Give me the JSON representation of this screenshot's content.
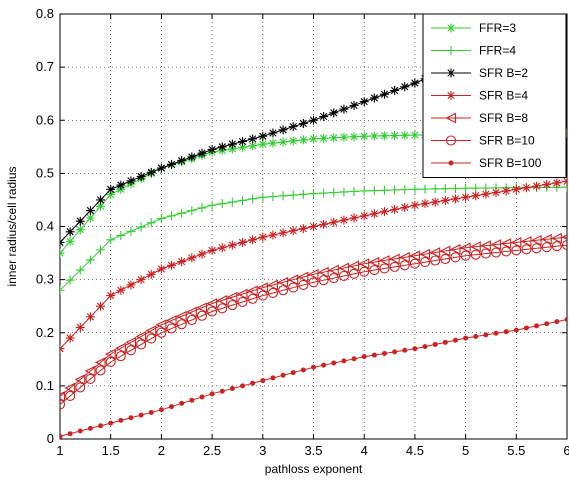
{
  "chart_data": {
    "type": "line",
    "title": "",
    "xlabel": "pathloss exponent",
    "ylabel": "inner radius/cell radius",
    "xlim": [
      1,
      6
    ],
    "ylim": [
      0,
      0.8
    ],
    "xticks": [
      "1",
      "1.5",
      "2",
      "2.5",
      "3",
      "3.5",
      "4",
      "4.5",
      "5",
      "5.5",
      "6"
    ],
    "yticks": [
      "0",
      "0.1",
      "0.2",
      "0.3",
      "0.4",
      "0.5",
      "0.6",
      "0.7",
      "0.8"
    ],
    "grid": true,
    "legend_position": "top-right",
    "x": [
      1,
      1.5,
      2,
      2.5,
      3,
      3.5,
      4,
      4.5,
      5,
      5.5,
      6
    ],
    "series": [
      {
        "name": "FFR=3",
        "color": "#33cc33",
        "marker": "asterisk",
        "values": [
          0.35,
          0.46,
          0.51,
          0.54,
          0.555,
          0.565,
          0.57,
          0.572,
          0.574,
          0.575,
          0.576
        ]
      },
      {
        "name": "FFR=4",
        "color": "#33cc33",
        "marker": "plus",
        "values": [
          0.28,
          0.375,
          0.415,
          0.44,
          0.455,
          0.462,
          0.467,
          0.47,
          0.472,
          0.473,
          0.474
        ]
      },
      {
        "name": "SFR B=2",
        "color": "#000000",
        "marker": "asterisk",
        "values": [
          0.37,
          0.47,
          0.51,
          0.545,
          0.57,
          0.6,
          0.635,
          0.67,
          0.71,
          0.75,
          0.79
        ]
      },
      {
        "name": "SFR B=4",
        "color": "#cc2222",
        "marker": "asterisk",
        "values": [
          0.17,
          0.27,
          0.32,
          0.355,
          0.38,
          0.4,
          0.42,
          0.44,
          0.455,
          0.47,
          0.485
        ]
      },
      {
        "name": "SFR B=8",
        "color": "#cc2222",
        "marker": "triangle-left",
        "values": [
          0.08,
          0.16,
          0.215,
          0.255,
          0.285,
          0.31,
          0.33,
          0.345,
          0.36,
          0.37,
          0.38
        ]
      },
      {
        "name": "SFR B=10",
        "color": "#cc2222",
        "marker": "circle",
        "values": [
          0.065,
          0.145,
          0.2,
          0.24,
          0.27,
          0.295,
          0.315,
          0.33,
          0.345,
          0.355,
          0.365
        ]
      },
      {
        "name": "SFR B=100",
        "color": "#cc2222",
        "marker": "dot",
        "values": [
          0.005,
          0.03,
          0.055,
          0.085,
          0.11,
          0.135,
          0.155,
          0.17,
          0.19,
          0.205,
          0.225
        ]
      }
    ]
  }
}
